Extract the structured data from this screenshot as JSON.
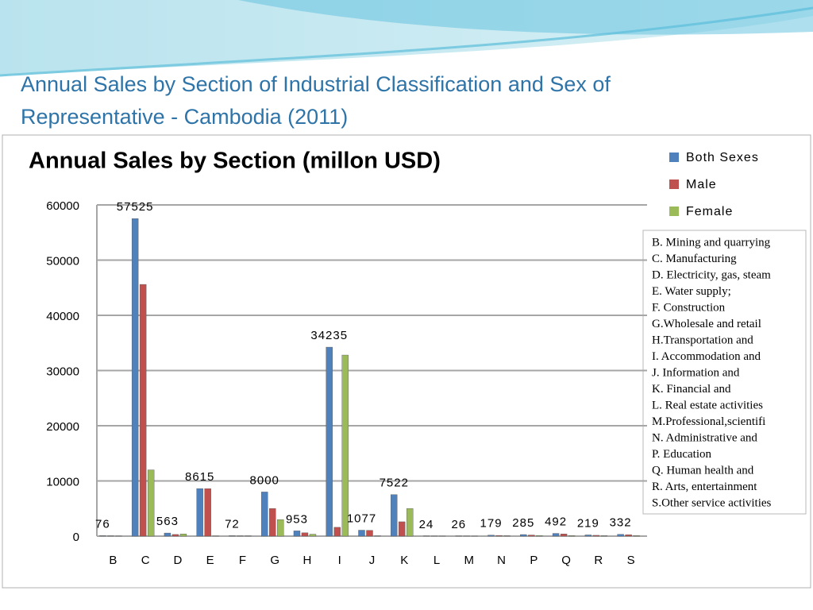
{
  "slide_title": "Annual Sales by Section of Industrial Classification and Sex of Representative  - Cambodia (2011)",
  "chart_data": {
    "type": "bar",
    "title": "Annual Sales by Section (millon USD)",
    "categories": [
      "B",
      "C",
      "D",
      "E",
      "F",
      "G",
      "H",
      "I",
      "J",
      "K",
      "L",
      "M",
      "N",
      "P",
      "Q",
      "R",
      "S"
    ],
    "series": [
      {
        "name": "Both Sexes",
        "color": "#4f81bd",
        "values": [
          76,
          57525,
          563,
          8615,
          72,
          8000,
          953,
          34235,
          1077,
          7522,
          24,
          26,
          179,
          285,
          492,
          219,
          332
        ]
      },
      {
        "name": "Male",
        "color": "#c0504d",
        "values": [
          50,
          45600,
          300,
          8600,
          40,
          5000,
          600,
          1600,
          1050,
          2600,
          15,
          15,
          120,
          200,
          400,
          150,
          250
        ]
      },
      {
        "name": "Female",
        "color": "#9bbb59",
        "values": [
          25,
          12000,
          400,
          20,
          30,
          3000,
          350,
          32800,
          30,
          5000,
          10,
          10,
          60,
          90,
          90,
          70,
          80
        ]
      }
    ],
    "ylim": [
      0,
      60000
    ],
    "yticks": [
      0,
      10000,
      20000,
      30000,
      40000,
      50000,
      60000
    ],
    "grid": true,
    "legend": "top-right",
    "notes": [
      "B. Mining and quarrying",
      "C. Manufacturing",
      "D. Electricity, gas, steam",
      "E. Water supply;",
      "F. Construction",
      "G.Wholesale and retail",
      "H.Transportation and",
      " I. Accommodation and",
      " J. Information and",
      "K. Financial and",
      "L. Real estate activities",
      "M.Professional,scientifi",
      "N. Administrative and",
      "P. Education",
      "Q. Human health and",
      "R. Arts, entertainment",
      "S.Other service activities"
    ]
  }
}
